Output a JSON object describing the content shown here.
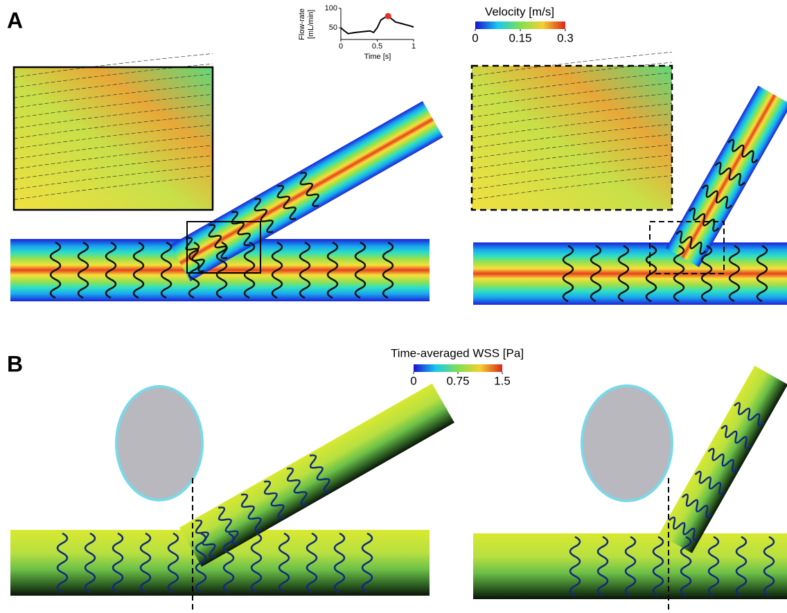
{
  "panel_a": {
    "label": "A",
    "velocity_colorbar": {
      "title": "Velocity [m/s]",
      "range": [
        0,
        0.3
      ],
      "ticks": [
        0,
        0.15,
        0.3
      ]
    }
  },
  "panel_b": {
    "label": "B",
    "wss_colorbar": {
      "title": "Time-averaged WSS [Pa]",
      "range": [
        0,
        1.5
      ],
      "ticks": [
        0,
        0.75,
        1.5
      ]
    }
  },
  "chart_data": {
    "type": "line",
    "xlabel": "Time [s]",
    "ylabel": [
      "Flow-rate",
      "[mL/min]"
    ],
    "x": [
      0,
      0.05,
      0.1,
      0.2,
      0.3,
      0.4,
      0.45,
      0.5,
      0.55,
      0.6,
      0.65,
      0.75,
      0.85,
      0.95,
      1
    ],
    "values": [
      50,
      42,
      35,
      38,
      40,
      42,
      38,
      50,
      70,
      76,
      80,
      65,
      60,
      55,
      52
    ],
    "color": "#000000",
    "xlim": [
      0,
      1
    ],
    "ylim": [
      20,
      100
    ],
    "xticks": [
      0,
      0.5,
      1
    ],
    "yticks": [
      50,
      100
    ],
    "marker": {
      "x": 0.65,
      "value": 80,
      "color": "#e0312a"
    }
  }
}
